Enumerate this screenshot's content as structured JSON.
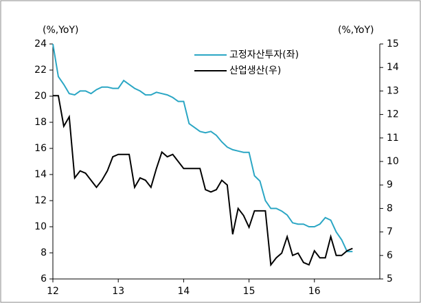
{
  "chart_data": {
    "type": "line",
    "y_unit_label": "(%,YoY)",
    "y2_unit_label": "(%,YoY)",
    "x": [
      12,
      12.0833,
      12.1667,
      12.25,
      12.3333,
      12.4167,
      12.5,
      12.5833,
      12.6667,
      12.75,
      12.8333,
      12.9167,
      13,
      13.0833,
      13.1667,
      13.25,
      13.3333,
      13.4167,
      13.5,
      13.5833,
      13.6667,
      13.75,
      13.8333,
      13.9167,
      14,
      14.0833,
      14.1667,
      14.25,
      14.3333,
      14.4167,
      14.5,
      14.5833,
      14.6667,
      14.75,
      14.8333,
      14.9167,
      15,
      15.0833,
      15.1667,
      15.25,
      15.3333,
      15.4167,
      15.5,
      15.5833,
      15.6667,
      15.75,
      15.8333,
      15.9167,
      16,
      16.0833,
      16.1667,
      16.25,
      16.3333,
      16.4167,
      16.5,
      16.5833
    ],
    "series": [
      {
        "name": "고정자산투자(좌)",
        "color": "#2aa6c4",
        "axis": "y",
        "values": [
          24,
          21.5,
          20.9,
          20.2,
          20.1,
          20.4,
          20.4,
          20.2,
          20.5,
          20.7,
          20.7,
          20.6,
          20.6,
          21.2,
          20.9,
          20.6,
          20.4,
          20.1,
          20.1,
          20.3,
          20.2,
          20.1,
          19.9,
          19.6,
          19.6,
          17.9,
          17.6,
          17.3,
          17.2,
          17.3,
          17.0,
          16.5,
          16.1,
          15.9,
          15.8,
          15.7,
          15.7,
          13.9,
          13.5,
          12.0,
          11.4,
          11.4,
          11.2,
          10.9,
          10.3,
          10.2,
          10.2,
          10.0,
          10.0,
          10.2,
          10.7,
          10.5,
          9.6,
          9.0,
          8.1,
          8.1
        ]
      },
      {
        "name": "산업생산(우)",
        "color": "#000000",
        "axis": "y2",
        "values": [
          12.8,
          12.8,
          11.5,
          11.9,
          9.3,
          9.6,
          9.5,
          9.2,
          8.9,
          9.2,
          9.6,
          10.2,
          10.3,
          10.3,
          10.3,
          8.9,
          9.3,
          9.2,
          8.9,
          9.7,
          10.4,
          10.2,
          10.3,
          10.0,
          9.7,
          9.7,
          9.7,
          9.7,
          8.8,
          8.7,
          8.8,
          9.2,
          9.0,
          6.9,
          8.0,
          7.7,
          7.2,
          7.9,
          7.9,
          7.9,
          5.6,
          5.9,
          6.1,
          6.8,
          6.0,
          6.1,
          5.7,
          5.6,
          6.2,
          5.9,
          5.9,
          6.8,
          6.0,
          6.0,
          6.2,
          6.3
        ]
      }
    ],
    "xlim": [
      12,
      17
    ],
    "xticks": [
      12,
      13,
      14,
      15,
      16
    ],
    "ylim": [
      6,
      24
    ],
    "yticks": [
      6,
      8,
      10,
      12,
      14,
      16,
      18,
      20,
      22,
      24
    ],
    "y2lim": [
      5,
      15
    ],
    "y2ticks": [
      5,
      6,
      7,
      8,
      9,
      10,
      11,
      12,
      13,
      14,
      15
    ],
    "grid": false,
    "legend": "top"
  }
}
